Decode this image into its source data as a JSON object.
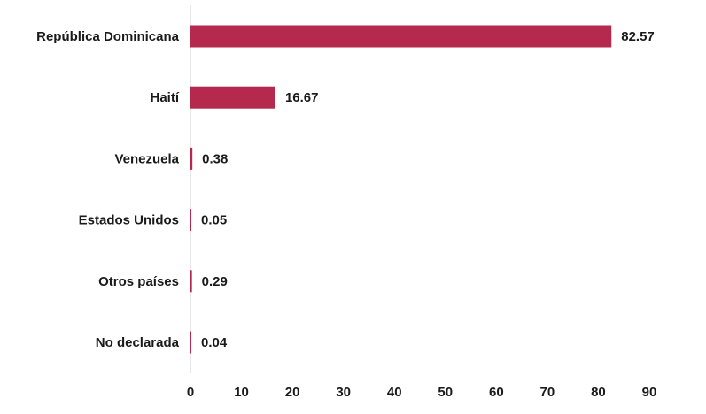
{
  "chart_data": {
    "type": "bar",
    "orientation": "horizontal",
    "categories": [
      "República Dominicana",
      "Haití",
      "Venezuela",
      "Estados Unidos",
      "Otros países",
      "No declarada"
    ],
    "values": [
      82.57,
      16.67,
      0.38,
      0.05,
      0.29,
      0.04
    ],
    "value_labels": [
      "82.57",
      "16.67",
      "0.38",
      "0.05",
      "0.29",
      "0.04"
    ],
    "x_ticks": [
      0,
      10,
      20,
      30,
      40,
      50,
      60,
      70,
      80,
      90
    ],
    "xlim": [
      0,
      90
    ],
    "title": "",
    "xlabel": "",
    "ylabel": "",
    "grid": false,
    "bar_color": "#b5294e"
  }
}
